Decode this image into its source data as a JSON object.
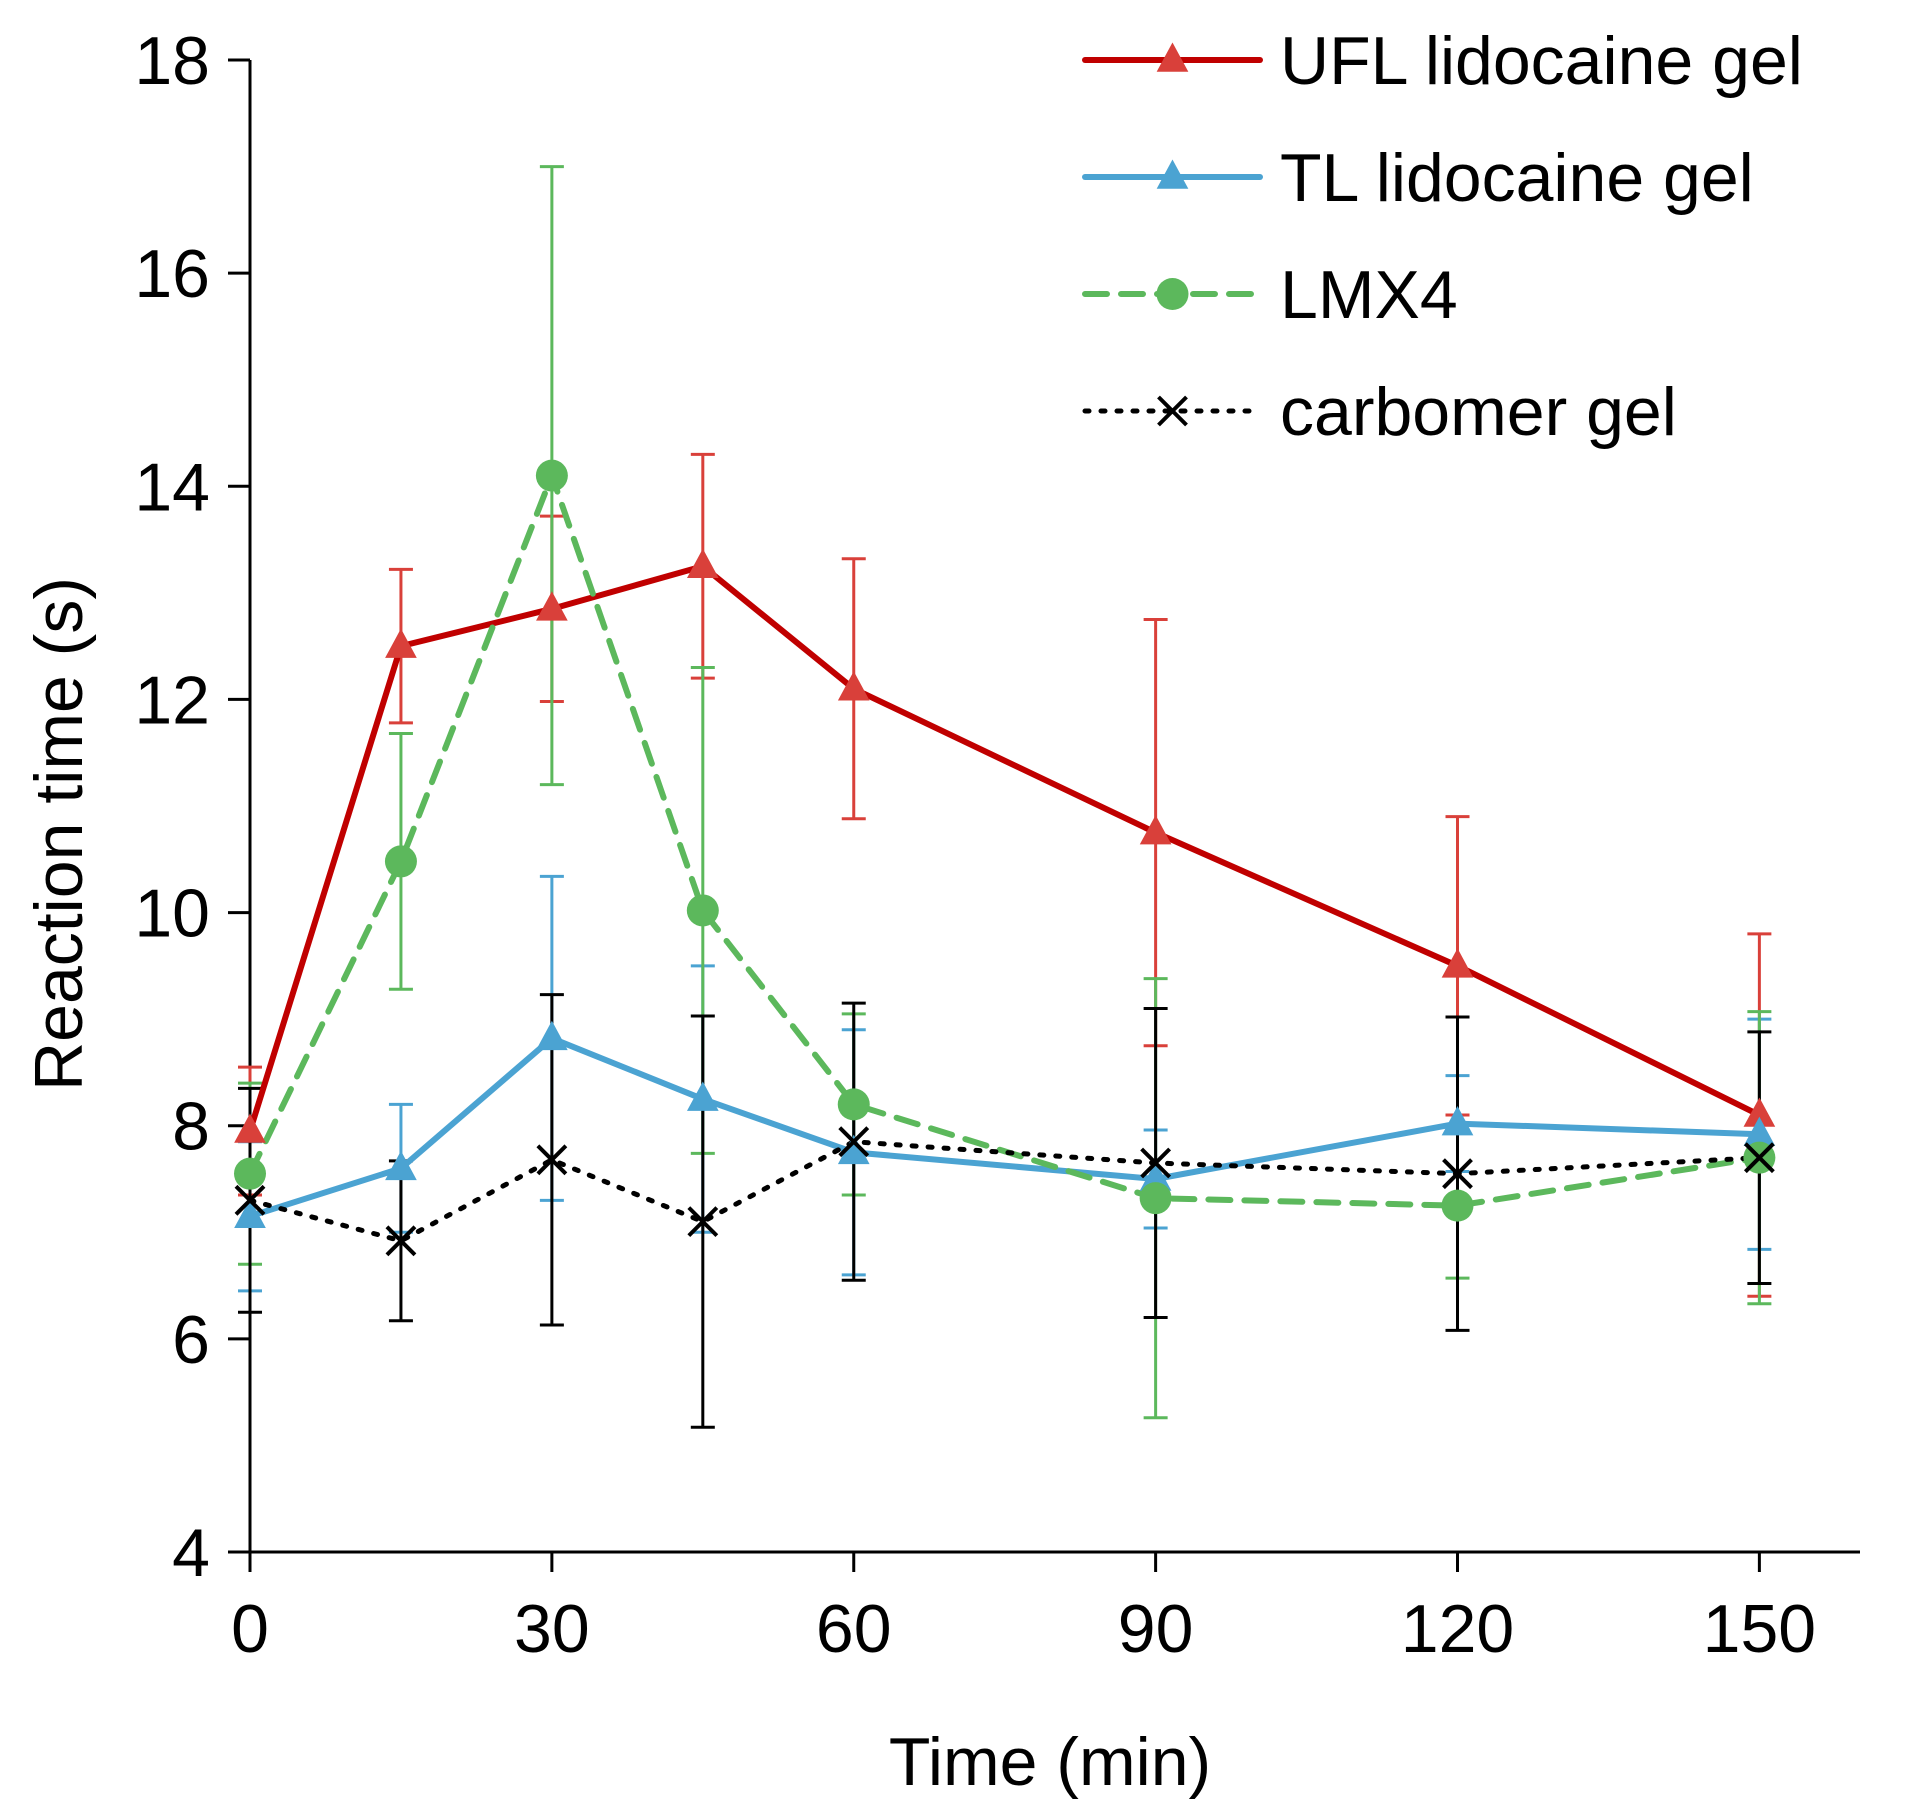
{
  "chart_data": {
    "type": "line",
    "title": "",
    "xlabel": "Time (min)",
    "ylabel": "Reaction time (s)",
    "xlim": [
      0,
      160
    ],
    "ylim": [
      4,
      18
    ],
    "xticks": [
      0,
      30,
      60,
      90,
      120,
      150
    ],
    "yticks": [
      4,
      6,
      8,
      10,
      12,
      14,
      16,
      18
    ],
    "grid": false,
    "legend_position": "top-right",
    "series": [
      {
        "name": "UFL lidocaine gel",
        "color": "#c00000",
        "marker_color": "#d9403a",
        "marker": "triangle",
        "line_style": "solid",
        "x": [
          0,
          15,
          30,
          45,
          60,
          90,
          120,
          150
        ],
        "y": [
          7.95,
          12.5,
          12.85,
          13.25,
          12.1,
          10.75,
          9.5,
          8.1
        ],
        "err": [
          0.6,
          0.72,
          0.87,
          1.05,
          1.22,
          2.0,
          1.4,
          1.7
        ]
      },
      {
        "name": "TL lidocaine gel",
        "color": "#4ba3d2",
        "marker_color": "#4ba3d2",
        "marker": "triangle",
        "line_style": "solid",
        "x": [
          0,
          15,
          30,
          45,
          60,
          90,
          120,
          150
        ],
        "y": [
          7.15,
          7.6,
          8.82,
          8.25,
          7.75,
          7.5,
          8.02,
          7.92
        ],
        "err": [
          0.7,
          0.6,
          1.52,
          1.25,
          1.15,
          0.46,
          0.45,
          1.08
        ]
      },
      {
        "name": "LMX4",
        "color": "#5cb85c",
        "marker_color": "#5cb85c",
        "marker": "circle",
        "line_style": "dashed",
        "x": [
          0,
          15,
          30,
          45,
          60,
          90,
          120,
          150
        ],
        "y": [
          7.55,
          10.48,
          14.1,
          10.02,
          8.2,
          7.32,
          7.25,
          7.7
        ],
        "err": [
          0.85,
          1.2,
          2.9,
          2.28,
          0.85,
          2.06,
          0.68,
          1.37
        ]
      },
      {
        "name": "carbomer gel",
        "color": "#000000",
        "marker_color": "#000000",
        "marker": "x",
        "line_style": "dotted",
        "x": [
          0,
          15,
          30,
          45,
          60,
          90,
          120,
          150
        ],
        "y": [
          7.3,
          6.92,
          7.68,
          7.1,
          7.85,
          7.65,
          7.55,
          7.7
        ],
        "err": [
          1.05,
          0.75,
          1.55,
          1.93,
          1.3,
          1.45,
          1.47,
          1.18
        ]
      }
    ]
  }
}
